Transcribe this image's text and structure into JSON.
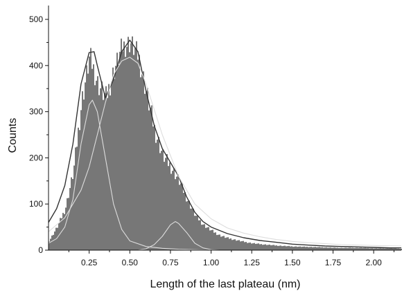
{
  "chart_data": {
    "type": "area",
    "title": "",
    "xlabel": "Length of the last plateau (nm)",
    "ylabel": "Counts",
    "xlim": [
      0,
      2.17
    ],
    "ylim": [
      0,
      530
    ],
    "x_ticks": [
      0.25,
      0.5,
      0.75,
      1.0,
      1.25,
      1.5,
      1.75,
      2.0
    ],
    "x_tick_labels": [
      "0.25",
      "0.50",
      "0.75",
      "1.00",
      "1.25",
      "1.50",
      "1.75",
      "2.00"
    ],
    "y_ticks": [
      0,
      100,
      200,
      300,
      400,
      500
    ],
    "y_tick_labels": [
      "0",
      "100",
      "200",
      "300",
      "400",
      "500"
    ],
    "grid": false,
    "legend": "none",
    "series": [
      {
        "kind": "histogram",
        "color": "#777777",
        "x": [
          0.0,
          0.05,
          0.1,
          0.15,
          0.2,
          0.25,
          0.3,
          0.35,
          0.4,
          0.45,
          0.5,
          0.55,
          0.6,
          0.65,
          0.7,
          0.75,
          0.8,
          0.85,
          0.9,
          0.95,
          1.0,
          1.05,
          1.1,
          1.15,
          1.2,
          1.25,
          1.3,
          1.4,
          1.5,
          1.6,
          1.7,
          1.8,
          1.9,
          2.0,
          2.1,
          2.17
        ],
        "y": [
          20,
          50,
          90,
          170,
          320,
          420,
          360,
          330,
          390,
          440,
          450,
          420,
          340,
          260,
          205,
          180,
          150,
          110,
          75,
          55,
          42,
          32,
          26,
          22,
          18,
          15,
          13,
          10,
          8,
          7,
          6,
          5,
          5,
          4,
          4,
          3
        ]
      },
      {
        "kind": "fit-sum",
        "color": "#333333",
        "x": [
          0.0,
          0.05,
          0.1,
          0.15,
          0.2,
          0.25,
          0.28,
          0.3,
          0.35,
          0.4,
          0.45,
          0.5,
          0.55,
          0.6,
          0.65,
          0.7,
          0.75,
          0.8,
          0.85,
          0.9,
          0.95,
          1.0,
          1.1,
          1.2,
          1.3,
          1.4,
          1.5,
          1.6,
          1.7,
          1.8,
          1.9,
          2.0,
          2.1,
          2.17
        ],
        "y": [
          60,
          90,
          140,
          230,
          360,
          428,
          430,
          400,
          330,
          370,
          430,
          455,
          430,
          345,
          270,
          220,
          190,
          160,
          115,
          82,
          62,
          50,
          36,
          27,
          21,
          17,
          13,
          11,
          9,
          8,
          7,
          6,
          5,
          5
        ]
      },
      {
        "kind": "fit-component",
        "color": "#dddddd",
        "x": [
          0.0,
          0.05,
          0.1,
          0.15,
          0.2,
          0.25,
          0.27,
          0.3,
          0.35,
          0.4,
          0.45,
          0.5,
          0.6,
          0.7,
          0.8,
          0.9,
          1.0,
          1.1
        ],
        "y": [
          15,
          25,
          50,
          110,
          230,
          315,
          325,
          300,
          200,
          100,
          45,
          20,
          8,
          4,
          2,
          1,
          0,
          0
        ]
      },
      {
        "kind": "fit-component",
        "color": "#dddddd",
        "x": [
          0.0,
          0.1,
          0.2,
          0.25,
          0.3,
          0.35,
          0.4,
          0.45,
          0.5,
          0.55,
          0.6,
          0.7,
          0.8,
          0.9,
          1.0,
          1.1,
          1.2,
          1.3,
          1.4,
          1.5,
          1.6,
          1.7,
          1.8,
          1.9,
          2.0,
          2.17
        ],
        "y": [
          40,
          70,
          130,
          180,
          250,
          320,
          380,
          410,
          418,
          405,
          360,
          250,
          160,
          100,
          68,
          48,
          37,
          29,
          23,
          19,
          16,
          14,
          12,
          11,
          10,
          9
        ]
      },
      {
        "kind": "fit-component",
        "color": "#dddddd",
        "x": [
          0.55,
          0.6,
          0.65,
          0.7,
          0.75,
          0.78,
          0.8,
          0.85,
          0.9,
          0.95,
          1.0,
          1.05
        ],
        "y": [
          0,
          3,
          12,
          30,
          55,
          62,
          58,
          38,
          15,
          5,
          1,
          0
        ]
      }
    ]
  }
}
